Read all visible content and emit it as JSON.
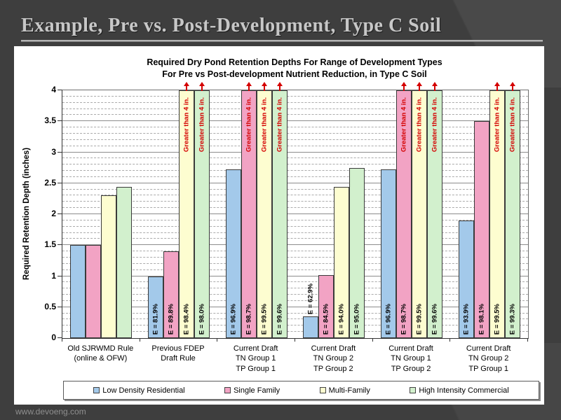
{
  "slide": {
    "title": "Example, Pre vs. Post-Development, Type C Soil",
    "footer": "www.devoeng.com"
  },
  "colors": {
    "slide_bg": "#3e3e3e",
    "title_text": "#c7c7c7",
    "panel_bg": "#ffffff",
    "over_limit_red": "#d40000",
    "grid_major": "#8c8c8c",
    "grid_minor": "#ababab"
  },
  "chart_data": {
    "type": "bar",
    "title_lines": [
      "Required Dry Pond Retention Depths For Range of Development Types",
      "For Pre vs Post-development Nutrient Reduction, in Type C Soil"
    ],
    "xlabel": "",
    "ylabel": "Required Retention Depth (inches)",
    "ylim": [
      0,
      4
    ],
    "major_grid_step": 0.5,
    "minor_grid_step": 0.1,
    "grid": true,
    "legend_position": "bottom",
    "over_limit_label": "Greater than 4 in.",
    "ytick_values": [
      "0",
      "0.5",
      "1",
      "1.5",
      "2",
      "2.5",
      "3",
      "3.5",
      "4"
    ],
    "categories": [
      [
        "Old SJRWMD Rule",
        "(online & OFW)"
      ],
      [
        "Previous FDEP",
        "Draft Rule"
      ],
      [
        "Current Draft",
        "TN Group 1",
        "TP Group 1"
      ],
      [
        "Current Draft",
        "TN Group 2",
        "TP Group 2"
      ],
      [
        "Current Draft",
        "TN Group 1",
        "TP Group 2"
      ],
      [
        "Current Draft",
        "TN Group 2",
        "TP Group 1"
      ]
    ],
    "series": [
      {
        "name": "Low Density Residential",
        "color": "#a3c9ea",
        "values": [
          1.5,
          1.0,
          2.72,
          0.35,
          2.72,
          1.9
        ],
        "efficiency_labels": [
          "",
          "E = 81.9%",
          "E = 96.9%",
          "E = 62.9%",
          "E = 96.9%",
          "E = 93.9%"
        ],
        "greater_than_4": [
          false,
          false,
          false,
          false,
          false,
          false
        ]
      },
      {
        "name": "Single Family",
        "color": "#f2a3c4",
        "values": [
          1.5,
          1.4,
          4,
          1.02,
          4,
          3.5
        ],
        "efficiency_labels": [
          "",
          "E = 89.8%",
          "E = 98.7%",
          "E = 84.5%",
          "E = 98.7%",
          "E = 98.1%"
        ],
        "greater_than_4": [
          false,
          false,
          true,
          false,
          true,
          false
        ]
      },
      {
        "name": "Multi-Family",
        "color": "#fdfdd0",
        "values": [
          2.3,
          4,
          4,
          2.44,
          4,
          4
        ],
        "efficiency_labels": [
          "",
          "E = 98.4%",
          "E = 99.5%",
          "E = 94.0%",
          "E = 99.5%",
          "E = 99.5%"
        ],
        "greater_than_4": [
          false,
          true,
          true,
          false,
          true,
          true
        ]
      },
      {
        "name": "High Intensity Commercial",
        "color": "#d2f0cd",
        "values": [
          2.44,
          4,
          4,
          2.75,
          4,
          4
        ],
        "efficiency_labels": [
          "",
          "E = 98.0%",
          "E = 99.6%",
          "E = 95.0%",
          "E = 99.6%",
          "E = 99.3%"
        ],
        "greater_than_4": [
          false,
          true,
          true,
          false,
          true,
          true
        ]
      }
    ]
  }
}
